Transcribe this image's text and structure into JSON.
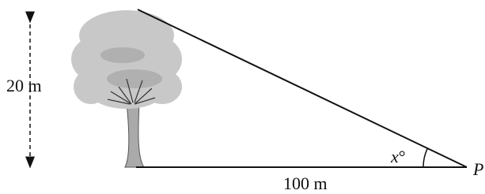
{
  "labels": {
    "height": "20 m",
    "base": "100 m",
    "angle_variable": "x",
    "angle_unit": "°",
    "point": "P"
  }
}
